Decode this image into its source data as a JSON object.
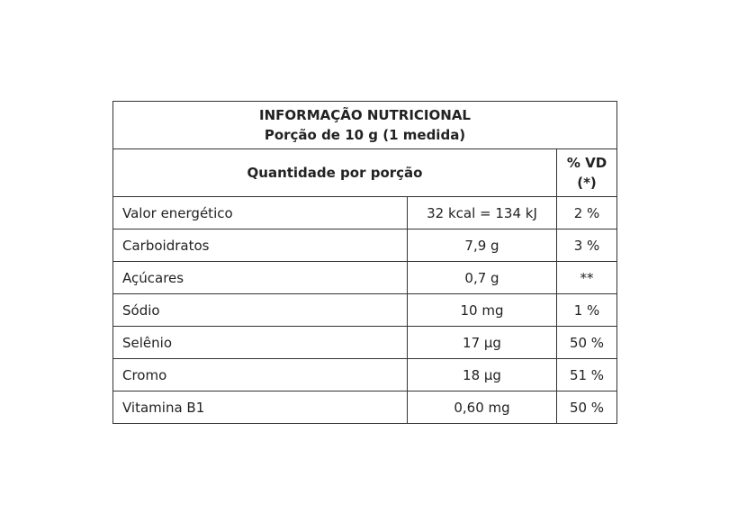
{
  "header": {
    "title": "INFORMAÇÃO NUTRICIONAL",
    "subtitle": "Porção de 10 g (1 medida)"
  },
  "table": {
    "header": [
      "Quantidade por porção",
      "% VD (*)"
    ],
    "rows": [
      [
        "Valor energético",
        "32 kcal = 134 kJ",
        "2 %"
      ],
      [
        "Carboidratos",
        "7,9 g",
        "3 %"
      ],
      [
        "Açúcares",
        "0,7 g",
        "**"
      ],
      [
        "Sódio",
        "10 mg",
        "1 %"
      ],
      [
        "Selênio",
        "17 µg",
        "50 %"
      ],
      [
        "Cromo",
        "18 µg",
        "51 %"
      ],
      [
        "Vitamina B1",
        "0,60 mg",
        "50 %"
      ]
    ]
  }
}
